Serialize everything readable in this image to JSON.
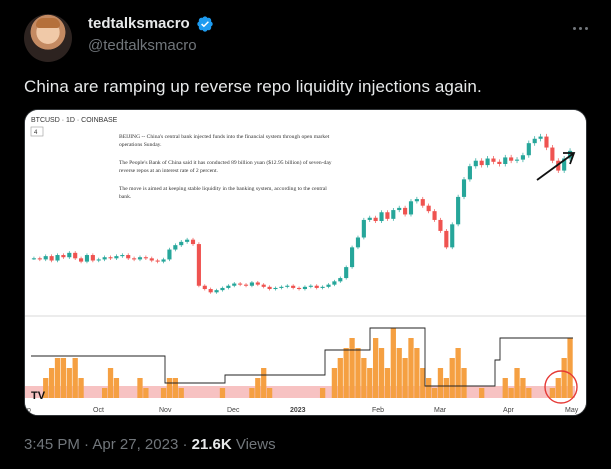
{
  "author": {
    "display_name": "tedtalksmacro",
    "handle": "@tedtalksmacro",
    "verified_color": "#1d9bf0"
  },
  "tweet": {
    "text": "China are ramping up reverse repo liquidity injections again."
  },
  "chart_image": {
    "symbol_label": "BTCUSD · 1D · COINBASE",
    "indicator_badge": "4",
    "news_paragraphs": [
      "BEIJING -- China's central bank injected funds into the financial system through open market operations Sunday.",
      "The People's Bank of China said it has conducted 89 billion yuan ($12.95 billion) of seven-day reverse repos at an interest rate of 2 percent.",
      "The move is aimed at keeping stable liquidity in the banking system, according to the central bank."
    ],
    "watermark": "TV",
    "colors": {
      "up": "#26a69a",
      "down": "#ef5350",
      "volume": "#f5a042",
      "band": "#f7b8b8",
      "line": "#222222"
    }
  },
  "chart_data": {
    "type": "bar",
    "xlabel": "",
    "ylabel": "",
    "x_ticks": [
      "p",
      "Oct",
      "Nov",
      "Dec",
      "2023",
      "Feb",
      "Mar",
      "Apr",
      "May"
    ],
    "price_series": {
      "name": "BTCUSD",
      "values": [
        19300,
        19200,
        19500,
        19100,
        19600,
        19400,
        19800,
        19300,
        19000,
        19600,
        19100,
        19200,
        19400,
        19300,
        19500,
        19600,
        19300,
        19200,
        19400,
        19300,
        19100,
        19000,
        19200,
        20100,
        20500,
        20800,
        21000,
        20600,
        16800,
        16500,
        16200,
        16400,
        16600,
        16800,
        17000,
        16900,
        16800,
        17100,
        16900,
        16700,
        16500,
        16600,
        16700,
        16800,
        16600,
        16500,
        16700,
        16800,
        16600,
        16700,
        16900,
        17200,
        17500,
        18500,
        20300,
        21200,
        22800,
        23000,
        22700,
        23500,
        22900,
        23700,
        23900,
        23300,
        24500,
        24700,
        24100,
        23600,
        22800,
        21800,
        20300,
        22400,
        24900,
        26500,
        27700,
        28200,
        27800,
        28400,
        28100,
        27900,
        28500,
        28200,
        28300,
        28700,
        29800,
        30200,
        30400,
        29400,
        28200,
        27300,
        28400,
        29100
      ]
    },
    "liquidity_series": {
      "name": "Reverse repo injections",
      "values": [
        0,
        0,
        2,
        3,
        4,
        4,
        3,
        4,
        2,
        0,
        0,
        0,
        1,
        3,
        2,
        0,
        0,
        0,
        2,
        1,
        0,
        0,
        1,
        2,
        2,
        1,
        0,
        0,
        0,
        0,
        0,
        0,
        1,
        0,
        0,
        0,
        0,
        1,
        2,
        3,
        1,
        0,
        0,
        0,
        0,
        0,
        0,
        0,
        0,
        1,
        0,
        3,
        4,
        5,
        6,
        5,
        4,
        3,
        6,
        5,
        3,
        7,
        5,
        4,
        6,
        5,
        3,
        2,
        1,
        3,
        2,
        4,
        5,
        3,
        0,
        0,
        1,
        0,
        0,
        0,
        2,
        1,
        3,
        2,
        1,
        0,
        0,
        0,
        1,
        2,
        4,
        6
      ]
    },
    "legend": "none",
    "grid": false
  },
  "footer": {
    "time": "3:45 PM",
    "separator": "·",
    "date": "Apr 27, 2023",
    "views_count": "21.6K",
    "views_label": "Views"
  }
}
